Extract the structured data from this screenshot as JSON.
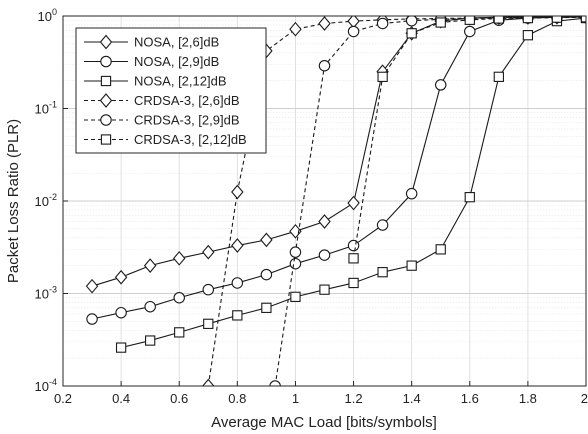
{
  "chart_data": {
    "type": "line",
    "xlabel": "Average MAC Load [bits/symbols]",
    "ylabel": "Packet Loss Ratio (PLR)",
    "xlim": [
      0.2,
      2.0
    ],
    "ylim": [
      0.0001,
      1
    ],
    "y_scale": "log",
    "grid": true,
    "legend_position": "top-left",
    "x_ticks": [
      "0.2",
      "0.4",
      "0.6",
      "0.8",
      "1",
      "1.2",
      "1.4",
      "1.6",
      "1.8",
      "2"
    ],
    "y_ticks": [
      {
        "base": "10",
        "exp": "0"
      },
      {
        "base": "10",
        "exp": "-1"
      },
      {
        "base": "10",
        "exp": "-2"
      },
      {
        "base": "10",
        "exp": "-3"
      },
      {
        "base": "10",
        "exp": "-4"
      }
    ],
    "series": [
      {
        "name": "NOSA, [2,6]dB",
        "marker": "diamond",
        "line": "solid",
        "x": [
          0.3,
          0.4,
          0.5,
          0.6,
          0.7,
          0.8,
          0.9,
          1.0,
          1.1,
          1.2,
          1.3,
          1.4,
          1.5,
          1.6,
          1.7,
          1.8,
          1.9,
          2.0
        ],
        "y": [
          0.0012,
          0.0015,
          0.002,
          0.0024,
          0.0028,
          0.0033,
          0.0038,
          0.0047,
          0.006,
          0.0095,
          0.25,
          0.65,
          0.88,
          0.95,
          0.97,
          0.98,
          0.985,
          0.99
        ]
      },
      {
        "name": "NOSA, [2,9]dB",
        "marker": "circle",
        "line": "solid",
        "x": [
          0.3,
          0.4,
          0.5,
          0.6,
          0.7,
          0.8,
          0.9,
          1.0,
          1.1,
          1.2,
          1.3,
          1.4,
          1.5,
          1.6,
          1.7,
          1.8,
          1.9,
          2.0
        ],
        "y": [
          0.00053,
          0.00062,
          0.00072,
          0.0009,
          0.0011,
          0.0013,
          0.0016,
          0.0021,
          0.0026,
          0.0033,
          0.0055,
          0.012,
          0.18,
          0.68,
          0.9,
          0.95,
          0.97,
          0.98
        ]
      },
      {
        "name": "NOSA, [2,12]dB",
        "marker": "square",
        "line": "solid",
        "x": [
          0.4,
          0.5,
          0.6,
          0.7,
          0.8,
          0.9,
          1.0,
          1.1,
          1.2,
          1.3,
          1.4,
          1.5,
          1.6,
          1.7,
          1.8,
          1.9,
          2.0
        ],
        "y": [
          0.00026,
          0.00031,
          0.00038,
          0.00047,
          0.00058,
          0.0007,
          0.00092,
          0.0011,
          0.0013,
          0.0017,
          0.002,
          0.003,
          0.011,
          0.22,
          0.62,
          0.88,
          0.95
        ]
      },
      {
        "name": "CRDSA-3, [2,6]dB",
        "marker": "diamond",
        "line": "dashed",
        "x": [
          0.7,
          0.8,
          0.9,
          1.0,
          1.1,
          1.2,
          1.3,
          1.4,
          1.5,
          1.6,
          1.7,
          1.8,
          1.9,
          2.0
        ],
        "y": [
          0.0001,
          0.0125,
          0.42,
          0.72,
          0.83,
          0.88,
          0.91,
          0.93,
          0.94,
          0.95,
          0.96,
          0.965,
          0.97,
          0.975
        ]
      },
      {
        "name": "CRDSA-3, [2,9]dB",
        "marker": "circle",
        "line": "dashed",
        "x": [
          0.93,
          1.0,
          1.1,
          1.2,
          1.3,
          1.4,
          1.5,
          1.6,
          1.7,
          1.8,
          1.9,
          2.0
        ],
        "y": [
          0.0001,
          0.0028,
          0.29,
          0.68,
          0.83,
          0.89,
          0.92,
          0.94,
          0.95,
          0.96,
          0.965,
          0.97
        ]
      },
      {
        "name": "CRDSA-3, [2,12]dB",
        "marker": "square",
        "line": "dashed",
        "x": [
          1.2,
          1.3,
          1.4,
          1.5,
          1.6,
          1.7,
          1.8,
          1.9,
          2.0
        ],
        "y": [
          0.0024,
          0.22,
          0.65,
          0.85,
          0.91,
          0.94,
          0.95,
          0.96,
          0.97
        ]
      }
    ]
  }
}
